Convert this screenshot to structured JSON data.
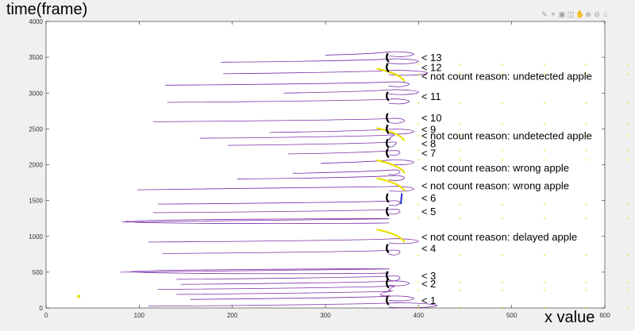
{
  "figure": {
    "ylabel_text": "time(frame)",
    "xlabel_text": "x value",
    "toolbar_icons": [
      "brush-icon",
      "data-tip-icon",
      "export-icon",
      "camera-icon",
      "pan-icon",
      "zoom-in-icon",
      "zoom-out-icon",
      "home-icon"
    ]
  },
  "chart_data": {
    "type": "line",
    "title": "",
    "xlabel": "x value",
    "ylabel": "time(frame)",
    "xlim": [
      0,
      600
    ],
    "ylim": [
      0,
      4000
    ],
    "xticks": [
      0,
      100,
      200,
      300,
      400,
      500,
      600
    ],
    "yticks": [
      0,
      500,
      1000,
      1500,
      2000,
      2500,
      3000,
      3500,
      4000
    ],
    "colors": {
      "trajectory": "#7b2fa8",
      "counted": "#000000",
      "uncounted": "#e8e000",
      "highlight": "#1f2fd0",
      "background": "#ffffff"
    },
    "trajectories": [
      {
        "y": 25,
        "x_min": 110,
        "x_max": 420
      },
      {
        "y": 120,
        "x_min": 155,
        "x_max": 395
      },
      {
        "y": 190,
        "x_min": 140,
        "x_max": 360
      },
      {
        "y": 260,
        "x_min": 120,
        "x_max": 370
      },
      {
        "y": 330,
        "x_min": 145,
        "x_max": 390
      },
      {
        "y": 400,
        "x_min": 140,
        "x_max": 380
      },
      {
        "y": 500,
        "x_min": 80,
        "x_max": 92
      },
      {
        "y": 760,
        "x_min": 125,
        "x_max": 380
      },
      {
        "y": 920,
        "x_min": 110,
        "x_max": 400
      },
      {
        "y": 1200,
        "x_min": 82,
        "x_max": 86
      },
      {
        "y": 1330,
        "x_min": 115,
        "x_max": 380
      },
      {
        "y": 1450,
        "x_min": 120,
        "x_max": 380
      },
      {
        "y": 1650,
        "x_min": 98,
        "x_max": 395
      },
      {
        "y": 1800,
        "x_min": 205,
        "x_max": 385
      },
      {
        "y": 1880,
        "x_min": 265,
        "x_max": 380
      },
      {
        "y": 2020,
        "x_min": 295,
        "x_max": 395
      },
      {
        "y": 2150,
        "x_min": 260,
        "x_max": 380
      },
      {
        "y": 2270,
        "x_min": 195,
        "x_max": 375
      },
      {
        "y": 2370,
        "x_min": 165,
        "x_max": 370
      },
      {
        "y": 2450,
        "x_min": 240,
        "x_max": 395
      },
      {
        "y": 2600,
        "x_min": 115,
        "x_max": 385
      },
      {
        "y": 2870,
        "x_min": 130,
        "x_max": 390
      },
      {
        "y": 3000,
        "x_min": 255,
        "x_max": 400
      },
      {
        "y": 3110,
        "x_min": 128,
        "x_max": 390
      },
      {
        "y": 3270,
        "x_min": 190,
        "x_max": 410
      },
      {
        "y": 3430,
        "x_min": 188,
        "x_max": 400
      },
      {
        "y": 3530,
        "x_min": 300,
        "x_max": 395
      }
    ],
    "annotations": [
      {
        "label": "< 1",
        "y": 100
      },
      {
        "label": "< 2",
        "y": 335
      },
      {
        "label": "< 3",
        "y": 445
      },
      {
        "label": "< 4",
        "y": 825
      },
      {
        "label": "< not count reason: delayed apple",
        "y": 985
      },
      {
        "label": "< 5",
        "y": 1340
      },
      {
        "label": "< 6",
        "y": 1530
      },
      {
        "label": "< not count reason: wrong apple",
        "y": 1700
      },
      {
        "label": "< not count reason: wrong apple",
        "y": 1950
      },
      {
        "label": "< 7",
        "y": 2155
      },
      {
        "label": "< 8",
        "y": 2290
      },
      {
        "label": "< not count reason: undetected apple",
        "y": 2400
      },
      {
        "label": "< 9",
        "y": 2490
      },
      {
        "label": "< 10",
        "y": 2650
      },
      {
        "label": "< 11",
        "y": 2950
      },
      {
        "label": "< not count reason: undetected apple",
        "y": 3230
      },
      {
        "label": "< 12",
        "y": 3350
      },
      {
        "label": "< 13",
        "y": 3490
      }
    ]
  }
}
